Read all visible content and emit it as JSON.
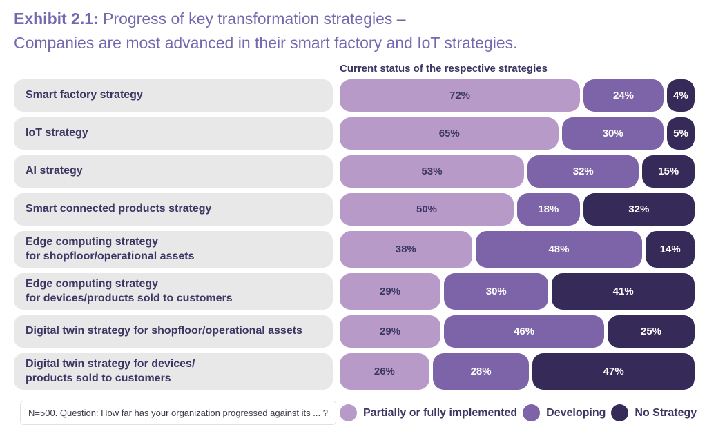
{
  "title": {
    "prefix": "Exhibit 2.1:",
    "line1_rest": " Progress of key transformation strategies –",
    "line2": "Companies are most advanced in their smart factory and IoT strategies."
  },
  "chart_header": "Current status of the respective strategies",
  "footnote": "N=500. Question: How far has your organization progressed against its ... ?",
  "colors": {
    "title_text": "#7568ae",
    "label_text": "#3d3663",
    "label_pill_bg": "#e9e8e9",
    "implemented": "#b79ac8",
    "developing": "#7d63a8",
    "no_strategy": "#362a59"
  },
  "chart_data": {
    "type": "bar",
    "orientation": "horizontal",
    "stacked": true,
    "value_suffix": "%",
    "xlim": [
      0,
      100
    ],
    "grid": false,
    "legend_position": "bottom-right",
    "title": "Current status of the respective strategies",
    "categories": [
      {
        "lines": [
          "Smart factory strategy"
        ]
      },
      {
        "lines": [
          "IoT strategy"
        ]
      },
      {
        "lines": [
          "AI strategy"
        ]
      },
      {
        "lines": [
          "Smart connected products strategy"
        ]
      },
      {
        "lines": [
          "Edge computing strategy",
          "for shopfloor/operational assets"
        ]
      },
      {
        "lines": [
          "Edge computing strategy",
          "for devices/products sold to customers"
        ]
      },
      {
        "lines": [
          "Digital twin strategy for shopfloor/operational assets"
        ]
      },
      {
        "lines": [
          "Digital twin strategy for devices/",
          "products sold to customers"
        ]
      }
    ],
    "series": [
      {
        "name": "Partially or fully implemented",
        "color": "#b79ac8",
        "text_color": "#3d3663",
        "values": [
          72,
          65,
          53,
          50,
          38,
          29,
          29,
          26
        ]
      },
      {
        "name": "Developing",
        "color": "#7d63a8",
        "text_color": "#ffffff",
        "values": [
          24,
          30,
          32,
          18,
          48,
          30,
          46,
          28
        ]
      },
      {
        "name": "No Strategy",
        "color": "#362a59",
        "text_color": "#ffffff",
        "values": [
          4,
          5,
          15,
          32,
          14,
          41,
          25,
          47
        ]
      }
    ]
  }
}
